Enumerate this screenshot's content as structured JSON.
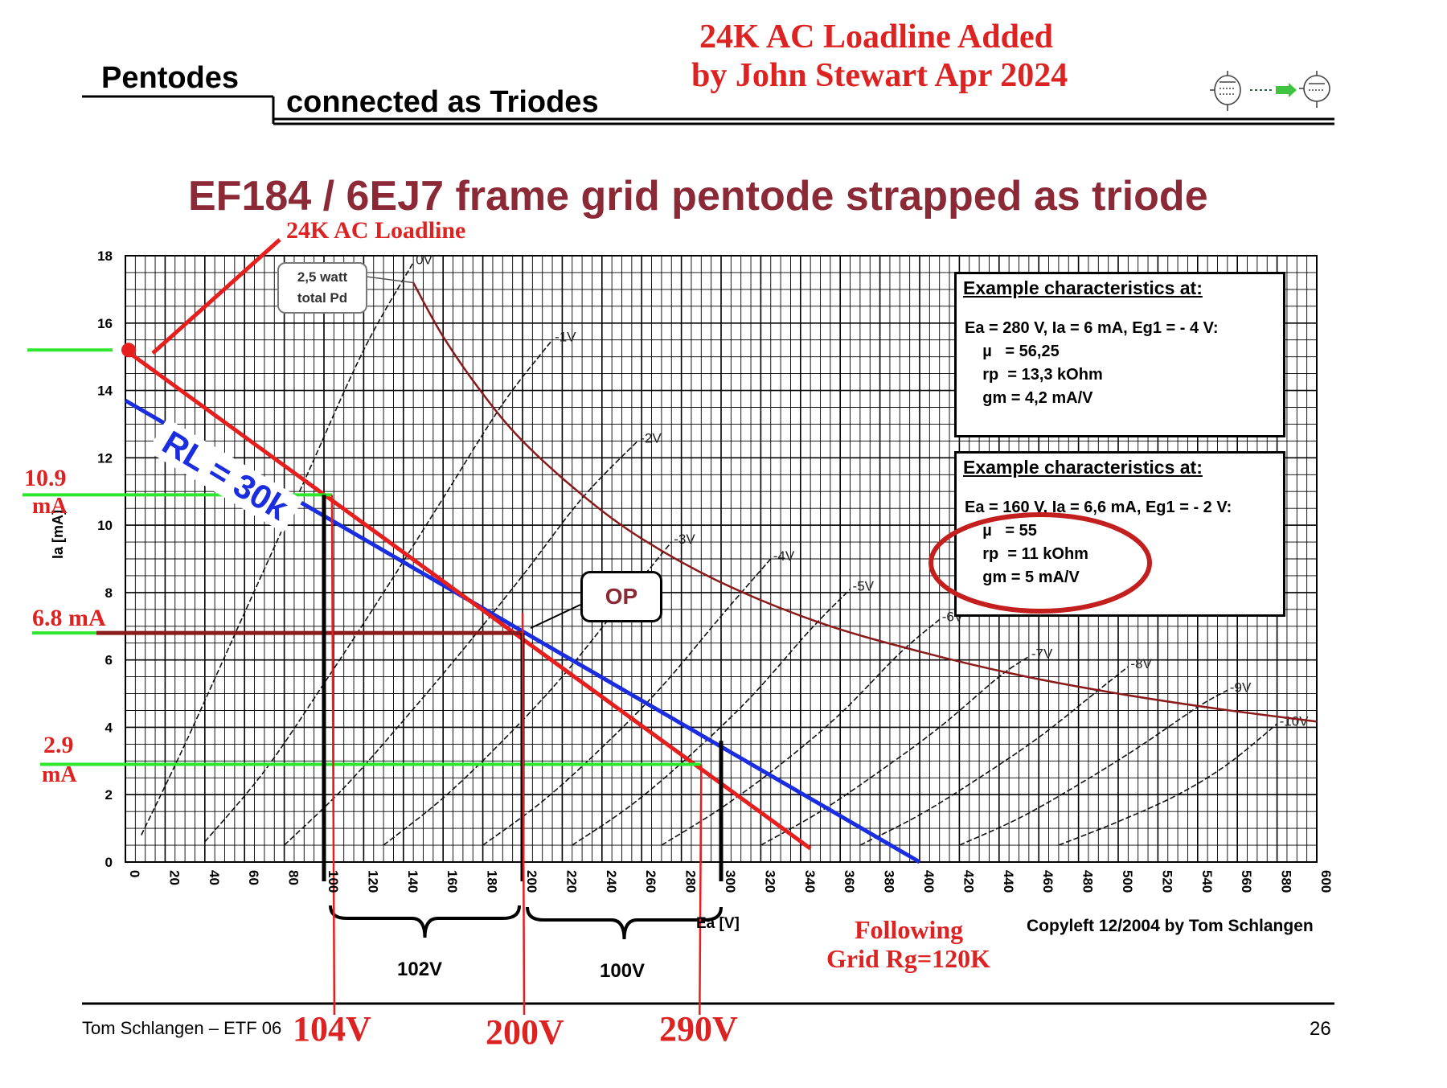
{
  "header": {
    "left_title": "Pentodes",
    "left_subtitle": "connected as Triodes",
    "annotation_line1": "24K AC Loadline Added",
    "annotation_line2": "by John Stewart Apr 2024",
    "icon": "pentode-to-triode-icon"
  },
  "chart_title": "EF184 / 6EJ7 frame grid pentode strapped as triode",
  "callouts": {
    "power": "2,5 watt\ntotal Pd",
    "op": "OP",
    "rl_label": "RL = 30k",
    "ac_loadline_label": "24K AC Loadline",
    "following_grid_line1": "Following",
    "following_grid_line2": "Grid Rg=120K"
  },
  "box1": {
    "header": "Example characteristics at:",
    "lines": [
      "Ea = 280 V, Ia = 6 mA, Eg1 = - 4 V:",
      "    µ   = 56,25",
      "    rp  = 13,3 kOhm",
      "    gm = 4,2 mA/V"
    ]
  },
  "box2": {
    "header": "Example characteristics at:",
    "lines": [
      "Ea = 160 V, Ia = 6,6 mA, Eg1 = - 2 V:",
      "    µ   = 55",
      "    rp  = 11 kOhm",
      "    gm = 5 mA/V"
    ]
  },
  "left_annotations": {
    "ia_high": "10.9",
    "ia_high_unit": "mA",
    "ia_op": "6.8 mA",
    "ia_low": "2.9",
    "ia_low_unit": "mA"
  },
  "brackets": {
    "b1": "102V",
    "b2": "100V"
  },
  "bottom_voltages": {
    "v1": "104V",
    "v2": "200V",
    "v3": "290V"
  },
  "copyright": "Copyleft 12/2004 by Tom Schlangen",
  "footer": {
    "left": "Tom Schlangen – ETF 06",
    "page": "26"
  },
  "colors": {
    "red": "#e61e1e",
    "blue": "#1a2ee0",
    "darkred": "#8b1a1a",
    "green": "#2ee62e",
    "title": "#8b2a36"
  },
  "chart_data": {
    "type": "line",
    "xlabel": "Ea [V]",
    "ylabel": "Ia [mA]",
    "xlim": [
      0,
      600
    ],
    "ylim": [
      0,
      18
    ],
    "x_ticks": [
      0,
      20,
      40,
      60,
      80,
      100,
      120,
      140,
      160,
      180,
      200,
      220,
      240,
      260,
      280,
      300,
      320,
      340,
      360,
      380,
      400,
      420,
      440,
      460,
      480,
      500,
      520,
      540,
      560,
      580,
      600
    ],
    "y_ticks": [
      0,
      2,
      4,
      6,
      8,
      10,
      12,
      14,
      16,
      18
    ],
    "grid": true,
    "series": [
      {
        "name": "0V",
        "role": "curve",
        "x": [
          8,
          30,
          60,
          90,
          120,
          145
        ],
        "y": [
          0.8,
          3.5,
          7.4,
          11.3,
          15.2,
          17.8
        ]
      },
      {
        "name": "-1V",
        "role": "curve",
        "x": [
          40,
          70,
          100,
          130,
          160,
          190,
          215
        ],
        "y": [
          0.6,
          2.7,
          5.3,
          8.0,
          10.8,
          13.6,
          15.5
        ]
      },
      {
        "name": "-2V",
        "role": "curve",
        "x": [
          80,
          110,
          140,
          170,
          200,
          230,
          258
        ],
        "y": [
          0.5,
          2.2,
          4.2,
          6.3,
          8.5,
          10.8,
          12.5
        ]
      },
      {
        "name": "-3V",
        "role": "curve",
        "x": [
          130,
          160,
          190,
          220,
          250,
          275
        ],
        "y": [
          0.5,
          1.9,
          3.6,
          5.5,
          7.7,
          9.5
        ]
      },
      {
        "name": "-4V",
        "role": "curve",
        "x": [
          180,
          210,
          240,
          270,
          300,
          325
        ],
        "y": [
          0.5,
          1.8,
          3.4,
          5.2,
          7.3,
          9.0
        ]
      },
      {
        "name": "-5V",
        "role": "curve",
        "x": [
          225,
          255,
          285,
          315,
          345,
          365
        ],
        "y": [
          0.5,
          1.7,
          3.2,
          4.9,
          6.9,
          8.1
        ]
      },
      {
        "name": "-6V",
        "role": "curve",
        "x": [
          270,
          300,
          330,
          360,
          390,
          410
        ],
        "y": [
          0.5,
          1.6,
          2.9,
          4.4,
          6.2,
          7.2
        ]
      },
      {
        "name": "-7V",
        "role": "curve",
        "x": [
          320,
          350,
          380,
          410,
          440,
          455
        ],
        "y": [
          0.5,
          1.5,
          2.7,
          4.0,
          5.5,
          6.1
        ]
      },
      {
        "name": "-8V",
        "role": "curve",
        "x": [
          370,
          400,
          430,
          460,
          490,
          505
        ],
        "y": [
          0.5,
          1.4,
          2.5,
          3.7,
          5.1,
          5.8
        ]
      },
      {
        "name": "-9V",
        "role": "curve",
        "x": [
          420,
          450,
          480,
          510,
          540,
          555
        ],
        "y": [
          0.5,
          1.3,
          2.3,
          3.4,
          4.6,
          5.1
        ]
      },
      {
        "name": "-10V",
        "role": "curve",
        "x": [
          470,
          500,
          530,
          555,
          580
        ],
        "y": [
          0.5,
          1.2,
          2.0,
          2.9,
          4.1
        ]
      },
      {
        "name": "2,5 watt total Pd",
        "role": "pd",
        "x": [
          145,
          160,
          180,
          200,
          230,
          260,
          300,
          350,
          400,
          450,
          500,
          550,
          600
        ],
        "y": [
          17.2,
          15.6,
          13.9,
          12.5,
          10.9,
          9.6,
          8.3,
          7.1,
          6.25,
          5.55,
          5.0,
          4.55,
          4.17
        ]
      },
      {
        "name": "RL = 30k",
        "role": "load_blue",
        "x": [
          0,
          400
        ],
        "y": [
          13.7,
          0
        ]
      },
      {
        "name": "24K AC Loadline",
        "role": "load_red",
        "x": [
          0,
          345
        ],
        "y": [
          15.2,
          0.4
        ]
      }
    ],
    "markers": [
      {
        "name": "OP",
        "x": 200,
        "y": 6.8
      },
      {
        "name": "start",
        "x": 0,
        "y": 15.2
      }
    ],
    "green_levels_ma": [
      15.2,
      10.9,
      6.8,
      2.9
    ],
    "vertical_guides_v": [
      100,
      200,
      300
    ],
    "red_guides_v": [
      104,
      200,
      290
    ]
  }
}
